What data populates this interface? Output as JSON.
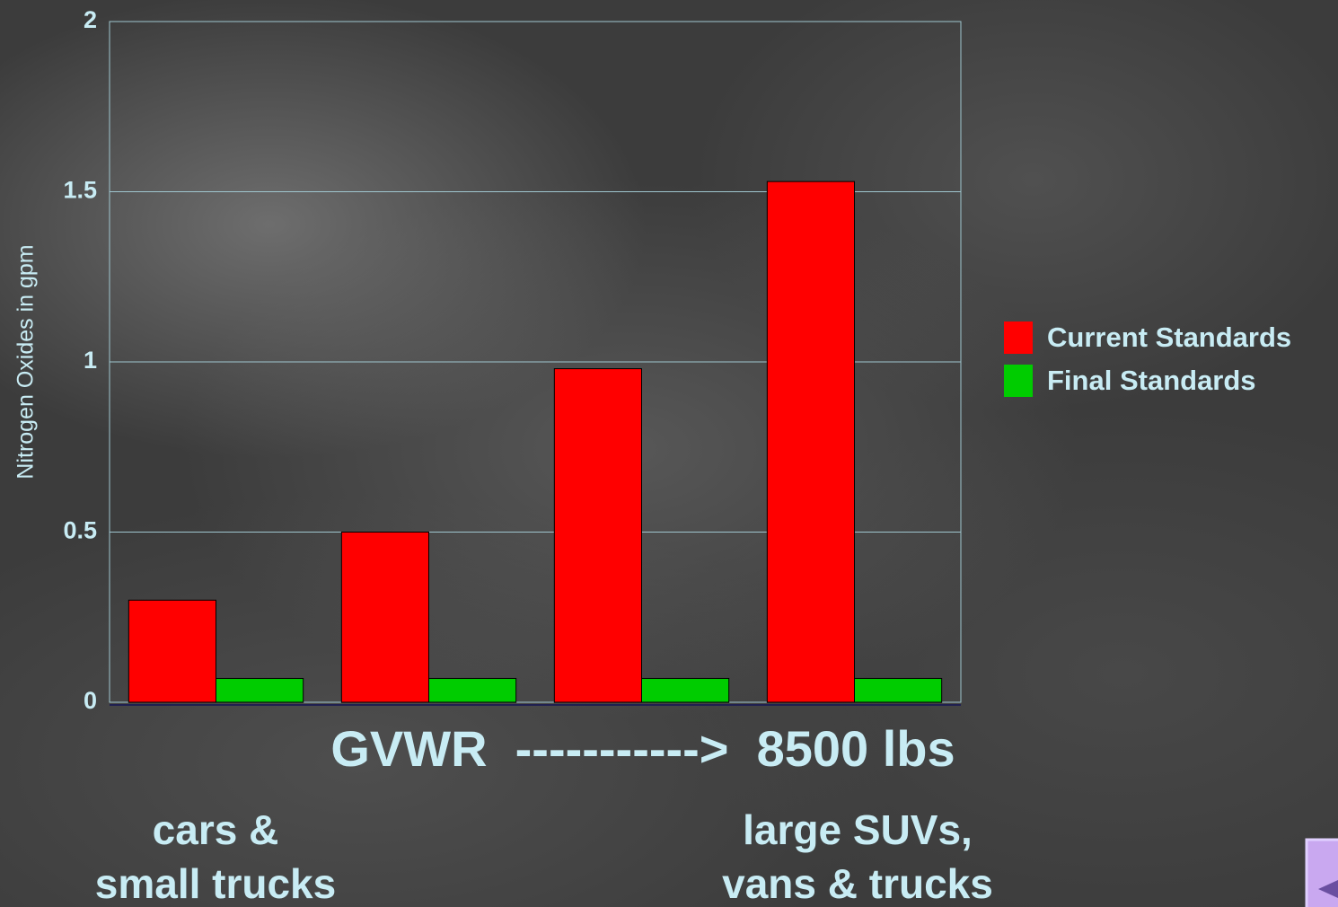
{
  "chart_data": {
    "type": "bar",
    "y_label": "Nitrogen Oxides in gpm",
    "x_label": "GVWR  ----------->  8500 lbs",
    "annotations": [
      [
        "cars &",
        "small trucks"
      ],
      [
        "large SUVs,",
        "vans & trucks"
      ]
    ],
    "categories": [
      null,
      null,
      null,
      null
    ],
    "series": [
      {
        "name": "Current Standards",
        "color": "#ff0000",
        "values": [
          0.3,
          0.5,
          0.98,
          1.53
        ]
      },
      {
        "name": "Final Standards",
        "color": "#00cc00",
        "values": [
          0.07,
          0.07,
          0.07,
          0.07
        ]
      }
    ],
    "ylim": [
      0,
      2
    ],
    "yticks": [
      0,
      0.5,
      1,
      1.5,
      2
    ],
    "grid": true,
    "legend": "right"
  }
}
